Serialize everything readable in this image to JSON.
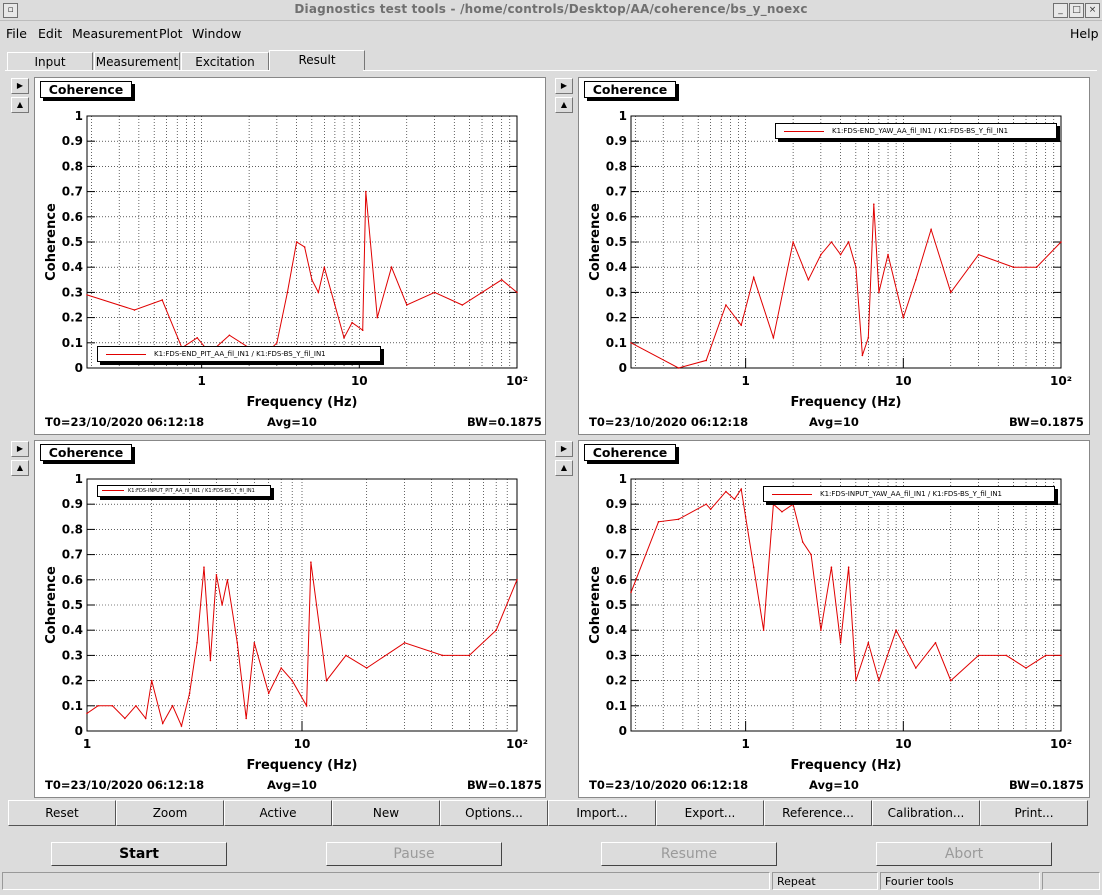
{
  "window": {
    "title": "Diagnostics test tools - /home/controls/Desktop/AA/coherence/bs_y_noexc"
  },
  "menu": {
    "file": "File",
    "edit": "Edit",
    "measurement": "Measurement",
    "plot": "Plot",
    "window": "Window",
    "help": "Help"
  },
  "tabs": [
    {
      "label": "Input"
    },
    {
      "label": "Measurement"
    },
    {
      "label": "Excitation"
    },
    {
      "label": "Result"
    }
  ],
  "panels": [
    {
      "title": "Coherence",
      "t0": "T0=23/10/2020 06:12:18",
      "avg": "Avg=10",
      "bw": "BW=0.1875",
      "legend": "K1:FDS-END_PIT_AA_fil_IN1 / K1:FDS-BS_Y_fil_IN1"
    },
    {
      "title": "Coherence",
      "t0": "T0=23/10/2020 06:12:18",
      "avg": "Avg=10",
      "bw": "BW=0.1875",
      "legend": "K1:FDS-END_YAW_AA_fil_IN1 / K1:FDS-BS_Y_fil_IN1"
    },
    {
      "title": "Coherence",
      "t0": "T0=23/10/2020 06:12:18",
      "avg": "Avg=10",
      "bw": "BW=0.1875",
      "legend": "K1:FDS-INPUT_PIT_AA_fil_IN1 / K1:FDS-BS_Y_fil_IN1"
    },
    {
      "title": "Coherence",
      "t0": "T0=23/10/2020 06:12:18",
      "avg": "Avg=10",
      "bw": "BW=0.1875",
      "legend": "K1:FDS-INPUT_YAW_AA_fil_IN1 / K1:FDS-BS_Y_fil_IN1"
    }
  ],
  "toolbar": {
    "reset": "Reset",
    "zoom": "Zoom",
    "active": "Active",
    "new": "New",
    "options": "Options...",
    "import": "Import...",
    "export": "Export...",
    "reference": "Reference...",
    "calibration": "Calibration...",
    "print": "Print..."
  },
  "controls": {
    "start": "Start",
    "pause": "Pause",
    "resume": "Resume",
    "abort": "Abort"
  },
  "status": {
    "repeat": "Repeat",
    "mode": "Fourier tools"
  },
  "colors": {
    "trace": "#e00000",
    "background": "#dcdcdc"
  },
  "chart_data": [
    {
      "type": "line",
      "xscale": "log",
      "xlim": [
        0.1875,
        100
      ],
      "ylim": [
        0,
        1
      ],
      "xlabel": "Frequency (Hz)",
      "ylabel": "Coherence",
      "xticks": [
        "1",
        "10",
        "10²"
      ],
      "yticks": [
        "0",
        "0.1",
        "0.2",
        "0.3",
        "0.4",
        "0.5",
        "0.6",
        "0.7",
        "0.8",
        "0.9",
        "1"
      ],
      "series": [
        {
          "name": "K1:FDS-END_PIT_AA_fil_IN1 / K1:FDS-BS_Y_fil_IN1",
          "x": [
            0.1875,
            0.375,
            0.5625,
            0.75,
            0.9375,
            1.125,
            1.5,
            2.0,
            2.5,
            3.0,
            3.5,
            4.0,
            4.5,
            5.0,
            5.5,
            6.0,
            7.0,
            8.0,
            9.0,
            10.5,
            11.0,
            13.0,
            16.0,
            20.0,
            30.0,
            45.0,
            60.0,
            80.0,
            100.0
          ],
          "y": [
            0.29,
            0.23,
            0.27,
            0.08,
            0.12,
            0.06,
            0.13,
            0.08,
            0.05,
            0.1,
            0.3,
            0.5,
            0.48,
            0.35,
            0.3,
            0.4,
            0.25,
            0.12,
            0.18,
            0.15,
            0.7,
            0.2,
            0.4,
            0.25,
            0.3,
            0.25,
            0.3,
            0.35,
            0.3
          ]
        }
      ]
    },
    {
      "type": "line",
      "xscale": "log",
      "xlim": [
        0.1875,
        100
      ],
      "ylim": [
        0,
        1
      ],
      "xlabel": "Frequency (Hz)",
      "ylabel": "Coherence",
      "xticks": [
        "1",
        "10",
        "10²"
      ],
      "yticks": [
        "0",
        "0.1",
        "0.2",
        "0.3",
        "0.4",
        "0.5",
        "0.6",
        "0.7",
        "0.8",
        "0.9",
        "1"
      ],
      "series": [
        {
          "name": "K1:FDS-END_YAW_AA_fil_IN1 / K1:FDS-BS_Y_fil_IN1",
          "x": [
            0.1875,
            0.375,
            0.5625,
            0.75,
            0.9375,
            1.125,
            1.5,
            2.0,
            2.5,
            3.0,
            3.5,
            4.0,
            4.5,
            5.0,
            5.5,
            6.0,
            6.5,
            7.0,
            8.0,
            10.0,
            12.0,
            15.0,
            20.0,
            30.0,
            50.0,
            70.0,
            100.0
          ],
          "y": [
            0.1,
            0.0,
            0.03,
            0.25,
            0.17,
            0.36,
            0.12,
            0.5,
            0.35,
            0.45,
            0.5,
            0.45,
            0.5,
            0.4,
            0.05,
            0.12,
            0.65,
            0.3,
            0.45,
            0.2,
            0.35,
            0.55,
            0.3,
            0.45,
            0.4,
            0.4,
            0.5
          ]
        }
      ]
    },
    {
      "type": "line",
      "xscale": "log",
      "xlim": [
        1,
        100
      ],
      "ylim": [
        0,
        1
      ],
      "xlabel": "Frequency (Hz)",
      "ylabel": "Coherence",
      "xticks": [
        "1",
        "10",
        "10²"
      ],
      "yticks": [
        "0",
        "0.1",
        "0.2",
        "0.3",
        "0.4",
        "0.5",
        "0.6",
        "0.7",
        "0.8",
        "0.9",
        "1"
      ],
      "series": [
        {
          "name": "K1:FDS-INPUT_PIT_AA_fil_IN1 / K1:FDS-BS_Y_fil_IN1",
          "x": [
            1.0,
            1.125,
            1.3125,
            1.5,
            1.6875,
            1.875,
            2.0,
            2.25,
            2.5,
            2.75,
            3.0,
            3.25,
            3.5,
            3.75,
            4.0,
            4.25,
            4.5,
            5.0,
            5.5,
            6.0,
            7.0,
            8.0,
            9.0,
            10.5,
            11.0,
            13.0,
            16.0,
            20.0,
            30.0,
            45.0,
            60.0,
            80.0,
            100.0
          ],
          "y": [
            0.07,
            0.1,
            0.1,
            0.05,
            0.1,
            0.05,
            0.2,
            0.03,
            0.1,
            0.02,
            0.15,
            0.35,
            0.65,
            0.28,
            0.62,
            0.5,
            0.6,
            0.35,
            0.05,
            0.35,
            0.15,
            0.25,
            0.2,
            0.1,
            0.67,
            0.2,
            0.3,
            0.25,
            0.35,
            0.3,
            0.3,
            0.4,
            0.6
          ]
        }
      ]
    },
    {
      "type": "line",
      "xscale": "log",
      "xlim": [
        0.1875,
        100
      ],
      "ylim": [
        0,
        1
      ],
      "xlabel": "Frequency (Hz)",
      "ylabel": "Coherence",
      "xticks": [
        "1",
        "10",
        "10²"
      ],
      "yticks": [
        "0",
        "0.1",
        "0.2",
        "0.3",
        "0.4",
        "0.5",
        "0.6",
        "0.7",
        "0.8",
        "0.9",
        "1"
      ],
      "series": [
        {
          "name": "K1:FDS-INPUT_YAW_AA_fil_IN1 / K1:FDS-BS_Y_fil_IN1",
          "x": [
            0.1875,
            0.28,
            0.375,
            0.5625,
            0.6,
            0.75,
            0.85,
            0.9375,
            1.0,
            1.125,
            1.3,
            1.5,
            1.7,
            2.0,
            2.3,
            2.6,
            3.0,
            3.5,
            4.0,
            4.5,
            5.0,
            6.0,
            7.0,
            9.0,
            12.0,
            16.0,
            20.0,
            30.0,
            45.0,
            60.0,
            80.0,
            100.0
          ],
          "y": [
            0.55,
            0.83,
            0.84,
            0.9,
            0.88,
            0.95,
            0.92,
            0.96,
            0.85,
            0.65,
            0.4,
            0.9,
            0.87,
            0.9,
            0.75,
            0.7,
            0.4,
            0.65,
            0.35,
            0.65,
            0.2,
            0.35,
            0.2,
            0.4,
            0.25,
            0.35,
            0.2,
            0.3,
            0.3,
            0.25,
            0.3,
            0.3
          ]
        }
      ]
    }
  ]
}
